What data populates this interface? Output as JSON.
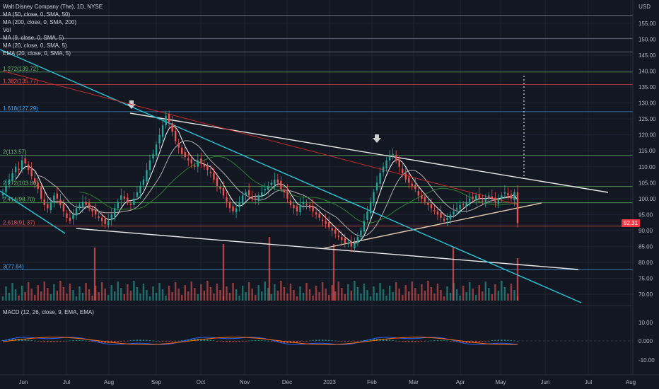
{
  "colors": {
    "background": "#131722",
    "up": "#26a69a",
    "down": "#ef5350",
    "grid": "#1f2433",
    "axis_text": "#b2b5be",
    "trend_white": "#e8e8e8",
    "trend_cyan": "#26c6da",
    "ma200": "#c62828",
    "ma50": "#2e7d32",
    "fib_green": "#66bb6a",
    "fib_red": "#ef5350",
    "fib_blue": "#42a5f5",
    "fib_orange": "#ff9800"
  },
  "legend": {
    "title": "Walt Disney Company (The), 1D, NYSE",
    "lines": [
      "MA (50, close, 0, SMA, 50)",
      "MA (200, close, 0, SMA, 200)",
      "Vol",
      "MA (9, close, 0, SMA, 5)",
      "MA (20, close, 0, SMA, 5)",
      "EMA (20, close, 0, SMA, 5)"
    ],
    "macd": "MACD (12, 26, close, 9, EMA, EMA)",
    "currency": "USD",
    "last_price": "92.31"
  },
  "chart_data": [
    {
      "type": "candlestick",
      "price_axis": {
        "min": 65,
        "max": 160,
        "ticks": [
          155,
          150,
          145,
          140,
          135,
          130,
          125,
          120,
          115,
          110,
          105,
          100,
          95,
          90,
          85,
          80,
          75,
          70
        ]
      },
      "time_axis": [
        "Jun",
        "Jul",
        "Aug",
        "Sep",
        "Oct",
        "Nov",
        "Dec",
        "2023",
        "Feb",
        "Mar",
        "Apr",
        "May",
        "Jun",
        "Jul",
        "Aug"
      ],
      "close": [
        102,
        104,
        106,
        108,
        110,
        109,
        112,
        111,
        109,
        107,
        105,
        103,
        100,
        98,
        97,
        99,
        101,
        100,
        98,
        96,
        94,
        93,
        95,
        97,
        98,
        99,
        98,
        97,
        96,
        95,
        94,
        93,
        92,
        93,
        95,
        97,
        99,
        101,
        100,
        99,
        98,
        100,
        102,
        104,
        106,
        109,
        112,
        114,
        117,
        120,
        123,
        126,
        124,
        121,
        118,
        116,
        114,
        113,
        112,
        111,
        110,
        112,
        111,
        110,
        109,
        108,
        106,
        104,
        103,
        101,
        99,
        97,
        96,
        97,
        99,
        101,
        102,
        101,
        100,
        100,
        101,
        102,
        103,
        104,
        105,
        106,
        105,
        103,
        102,
        100,
        98,
        97,
        96,
        98,
        99,
        98,
        97,
        96,
        95,
        94,
        93,
        92,
        91,
        90,
        89,
        88,
        87,
        86,
        86,
        85,
        86,
        88,
        90,
        93,
        96,
        99,
        102,
        105,
        108,
        110,
        112,
        113,
        114,
        112,
        110,
        108,
        106,
        105,
        104,
        103,
        101,
        100,
        99,
        98,
        97,
        96,
        95,
        94,
        93,
        94,
        95,
        96,
        97,
        98,
        98,
        99,
        100,
        100,
        101,
        100,
        99,
        100,
        101,
        100,
        99,
        100,
        101,
        102,
        101,
        100,
        102,
        92.31
      ],
      "fib_levels": [
        {
          "label": "1.272(139.72)",
          "value": 139.72,
          "color": "#66bb6a"
        },
        {
          "label": "1.382(135.77)",
          "value": 135.77,
          "color": "#ef5350"
        },
        {
          "label": "1.618(127.29)",
          "value": 127.29,
          "color": "#42a5f5"
        },
        {
          "label": "2(113.57)",
          "value": 113.57,
          "color": "#66bb6a"
        },
        {
          "label": "2.272(103.80)",
          "value": 103.8,
          "color": "#66bb6a"
        },
        {
          "label": "2.414(98.70)",
          "value": 98.7,
          "color": "#66bb6a"
        },
        {
          "label": "2.618(91.37)",
          "value": 91.37,
          "color": "#ef5350"
        },
        {
          "label": "3(77.64)",
          "value": 77.64,
          "color": "#42a5f5"
        }
      ],
      "extra_levels": [
        157.5,
        150.3,
        146.0
      ],
      "macd_axis": {
        "ticks": [
          "10.00",
          "0.000",
          "-10.00"
        ]
      }
    }
  ]
}
